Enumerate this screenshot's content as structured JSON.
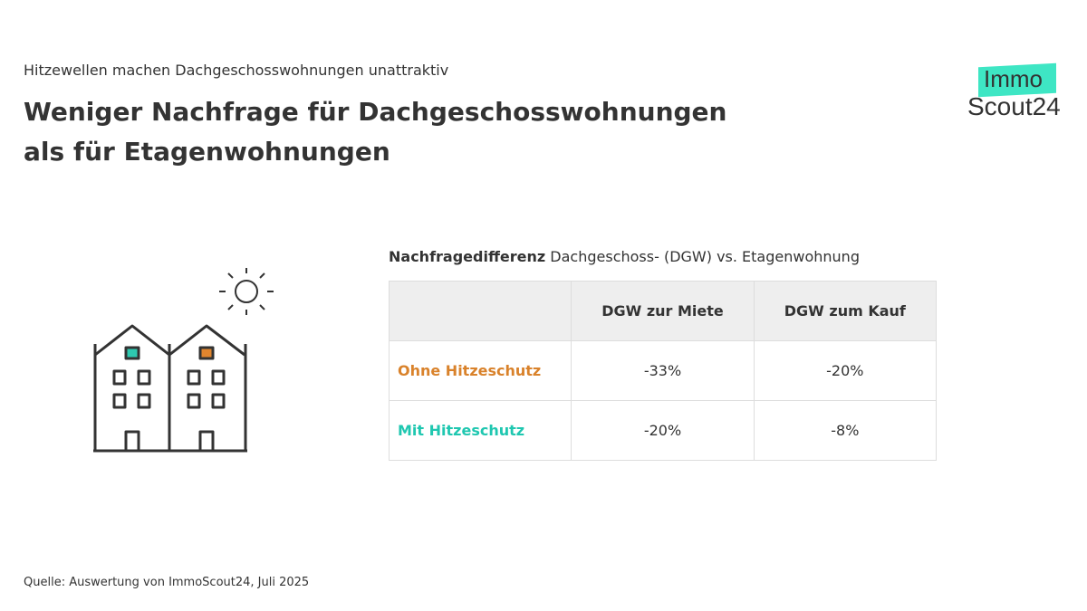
{
  "subtitle": "Hitzewellen machen Dachgeschosswohnungen unattraktiv",
  "title": "Weniger Nachfrage für Dachgeschosswohnungen als für Etagenwohnungen",
  "logo": {
    "line1": "Immo",
    "line2": "Scout24",
    "accent": "#3ee6c4"
  },
  "table": {
    "caption_bold": "Nachfragedifferenz",
    "caption_rest": " Dachgeschoss- (DGW) vs. Etagenwohnung",
    "headers": [
      "",
      "DGW zur Miete",
      "DGW zum Kauf"
    ],
    "rows": [
      {
        "label": "Ohne Hitzeschutz",
        "color": "#d9822b",
        "values": [
          "-33%",
          "-20%"
        ]
      },
      {
        "label": "Mit Hitzeschutz",
        "color": "#1fc7b0",
        "values": [
          "-20%",
          "-8%"
        ]
      }
    ]
  },
  "illustration": {
    "icons": [
      "houses-icon",
      "sun-icon"
    ],
    "window_colors": [
      "#2ec9b0",
      "#e0852e"
    ]
  },
  "source": "Quelle: Auswertung von ImmoScout24, Juli 2025"
}
